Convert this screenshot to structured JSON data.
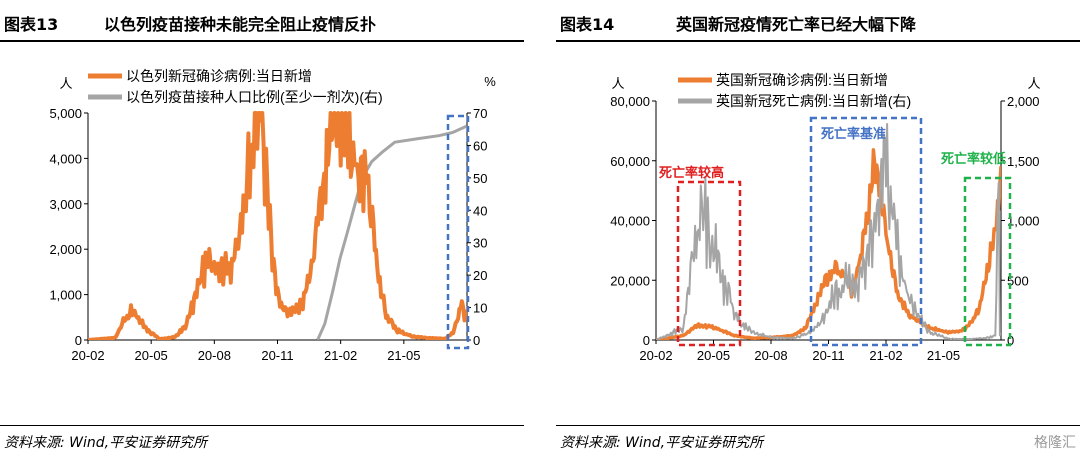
{
  "colors": {
    "orange": "#ED7D31",
    "gray": "#A5A5A5",
    "blue": "#4472C4",
    "red": "#E02020",
    "green": "#1FB24A"
  },
  "watermark": "格隆汇",
  "panels": [
    {
      "figure_no": "图表13",
      "title": "以色列疫苗接种未能完全阻止疫情反扑",
      "source": "资料来源: Wind,平安证券研究所",
      "y_left_unit": "人",
      "y_right_unit": "%",
      "annotations": []
    },
    {
      "figure_no": "图表14",
      "title": "英国新冠疫情死亡率已经大幅下降",
      "source": "资料来源: Wind,平安证券研究所",
      "y_left_unit": "人",
      "y_right_unit": "人",
      "annotations": [
        {
          "text": "死亡率较高",
          "box_color": "#E02020",
          "text_color": "#E02020"
        },
        {
          "text": "死亡率基准",
          "box_color": "#4472C4",
          "text_color": "#4472C4"
        },
        {
          "text": "死亡率较低",
          "box_color": "#1FB24A",
          "text_color": "#1FB24A"
        }
      ]
    }
  ],
  "chart_data": [
    {
      "type": "line",
      "title": "以色列疫苗接种未能完全阻止疫情反扑",
      "x_ticks": [
        "20-02",
        "20-05",
        "20-08",
        "20-11",
        "21-02",
        "21-05"
      ],
      "x_range": [
        "2020-02-01",
        "2021-07-10"
      ],
      "y_left": {
        "unit": "人",
        "ylim": [
          0,
          5000
        ],
        "ticks": [
          "0",
          "1,000",
          "2,000",
          "3,000",
          "4,000",
          "5,000"
        ]
      },
      "y_right": {
        "unit": "%",
        "ylim": [
          0,
          70
        ],
        "ticks": [
          "0",
          "10",
          "20",
          "30",
          "40",
          "50",
          "60",
          "70"
        ]
      },
      "series": [
        {
          "name": "以色列新冠确诊病例:当日新增",
          "axis": "left",
          "color": "#ED7D31",
          "jitter": 0.22,
          "points": [
            [
              "2020-02-01",
              0
            ],
            [
              "2020-03-10",
              50
            ],
            [
              "2020-03-22",
              450
            ],
            [
              "2020-04-02",
              650
            ],
            [
              "2020-04-12",
              450
            ],
            [
              "2020-04-25",
              200
            ],
            [
              "2020-05-10",
              20
            ],
            [
              "2020-05-31",
              60
            ],
            [
              "2020-06-15",
              300
            ],
            [
              "2020-06-28",
              900
            ],
            [
              "2020-07-08",
              1500
            ],
            [
              "2020-07-20",
              1800
            ],
            [
              "2020-08-05",
              1600
            ],
            [
              "2020-08-20",
              1700
            ],
            [
              "2020-09-01",
              2500
            ],
            [
              "2020-09-10",
              4000
            ],
            [
              "2020-09-20",
              5000
            ],
            [
              "2020-09-28",
              5000
            ],
            [
              "2020-10-05",
              3500
            ],
            [
              "2020-10-15",
              1500
            ],
            [
              "2020-10-25",
              700
            ],
            [
              "2020-11-05",
              600
            ],
            [
              "2020-11-20",
              700
            ],
            [
              "2020-12-01",
              1200
            ],
            [
              "2020-12-15",
              2500
            ],
            [
              "2020-12-28",
              4000
            ],
            [
              "2021-01-08",
              5000
            ],
            [
              "2021-01-22",
              5000
            ],
            [
              "2021-02-01",
              4000
            ],
            [
              "2021-02-10",
              3800
            ],
            [
              "2021-02-20",
              3500
            ],
            [
              "2021-03-01",
              2800
            ],
            [
              "2021-03-10",
              1200
            ],
            [
              "2021-03-22",
              500
            ],
            [
              "2021-04-05",
              200
            ],
            [
              "2021-04-25",
              80
            ],
            [
              "2021-05-20",
              40
            ],
            [
              "2021-06-10",
              30
            ],
            [
              "2021-06-20",
              150
            ],
            [
              "2021-06-28",
              550
            ],
            [
              "2021-07-03",
              900
            ],
            [
              "2021-07-07",
              400
            ],
            [
              "2021-07-10",
              600
            ]
          ]
        },
        {
          "name": "以色列疫苗接种人口比例(至少一剂次)(右)",
          "axis": "right",
          "color": "#A5A5A5",
          "jitter": 0,
          "points": [
            [
              "2020-12-15",
              0
            ],
            [
              "2020-12-25",
              5
            ],
            [
              "2021-01-05",
              15
            ],
            [
              "2021-01-15",
              25
            ],
            [
              "2021-01-25",
              33
            ],
            [
              "2021-02-05",
              42
            ],
            [
              "2021-02-15",
              50
            ],
            [
              "2021-02-28",
              55
            ],
            [
              "2021-03-15",
              58
            ],
            [
              "2021-04-01",
              61
            ],
            [
              "2021-05-01",
              62
            ],
            [
              "2021-06-01",
              63
            ],
            [
              "2021-06-20",
              64
            ],
            [
              "2021-07-10",
              66
            ]
          ]
        }
      ]
    },
    {
      "type": "line",
      "title": "英国新冠疫情死亡率已经大幅下降",
      "x_ticks": [
        "20-02",
        "20-05",
        "20-08",
        "20-11",
        "21-02",
        "21-05"
      ],
      "x_range": [
        "2020-02-01",
        "2021-07-20"
      ],
      "y_left": {
        "ylim": [
          0,
          80000
        ],
        "ticks": [
          "0",
          "20,000",
          "40,000",
          "60,000",
          "80,000"
        ]
      },
      "y_right": {
        "ylim": [
          0,
          2000
        ],
        "ticks": [
          "0",
          "500",
          "1,000",
          "1,500",
          "2,000"
        ]
      },
      "series": [
        {
          "name": "英国新冠确诊病例:当日新增",
          "axis": "left",
          "color": "#ED7D31",
          "jitter": 0.12,
          "points": [
            [
              "2020-02-01",
              0
            ],
            [
              "2020-03-15",
              1500
            ],
            [
              "2020-04-01",
              4500
            ],
            [
              "2020-04-10",
              5000
            ],
            [
              "2020-04-25",
              4500
            ],
            [
              "2020-05-15",
              3000
            ],
            [
              "2020-06-01",
              1500
            ],
            [
              "2020-07-01",
              600
            ],
            [
              "2020-08-01",
              900
            ],
            [
              "2020-09-01",
              1500
            ],
            [
              "2020-09-20",
              4000
            ],
            [
              "2020-10-05",
              12000
            ],
            [
              "2020-10-20",
              20000
            ],
            [
              "2020-11-05",
              24000
            ],
            [
              "2020-11-20",
              22000
            ],
            [
              "2020-12-01",
              16000
            ],
            [
              "2020-12-15",
              28000
            ],
            [
              "2020-12-28",
              45000
            ],
            [
              "2021-01-05",
              60000
            ],
            [
              "2021-01-15",
              50000
            ],
            [
              "2021-01-25",
              32000
            ],
            [
              "2021-02-10",
              15000
            ],
            [
              "2021-03-01",
              8000
            ],
            [
              "2021-04-01",
              4000
            ],
            [
              "2021-05-01",
              2500
            ],
            [
              "2021-05-20",
              3000
            ],
            [
              "2021-06-01",
              5000
            ],
            [
              "2021-06-15",
              10000
            ],
            [
              "2021-06-28",
              22000
            ],
            [
              "2021-07-10",
              35000
            ],
            [
              "2021-07-15",
              47000
            ],
            [
              "2021-07-20",
              52000
            ]
          ]
        },
        {
          "name": "英国新冠死亡病例:当日新增(右)",
          "axis": "right",
          "color": "#A5A5A5",
          "jitter": 0.35,
          "points": [
            [
              "2020-02-01",
              0
            ],
            [
              "2020-03-15",
              100
            ],
            [
              "2020-03-28",
              700
            ],
            [
              "2020-04-08",
              1000
            ],
            [
              "2020-04-15",
              1100
            ],
            [
              "2020-04-25",
              900
            ],
            [
              "2020-05-10",
              600
            ],
            [
              "2020-05-25",
              350
            ],
            [
              "2020-06-10",
              150
            ],
            [
              "2020-07-01",
              60
            ],
            [
              "2020-08-01",
              20
            ],
            [
              "2020-09-01",
              15
            ],
            [
              "2020-10-01",
              70
            ],
            [
              "2020-10-20",
              200
            ],
            [
              "2020-11-05",
              400
            ],
            [
              "2020-11-20",
              500
            ],
            [
              "2020-12-05",
              450
            ],
            [
              "2020-12-20",
              550
            ],
            [
              "2021-01-05",
              1000
            ],
            [
              "2021-01-15",
              1400
            ],
            [
              "2021-01-22",
              1500
            ],
            [
              "2021-02-01",
              1100
            ],
            [
              "2021-02-15",
              600
            ],
            [
              "2021-03-01",
              300
            ],
            [
              "2021-04-01",
              60
            ],
            [
              "2021-05-01",
              10
            ],
            [
              "2021-06-01",
              8
            ],
            [
              "2021-07-01",
              20
            ],
            [
              "2021-07-12",
              40
            ],
            [
              "2021-07-16",
              1600
            ],
            [
              "2021-07-18",
              40
            ],
            [
              "2021-07-20",
              50
            ]
          ]
        }
      ]
    }
  ]
}
